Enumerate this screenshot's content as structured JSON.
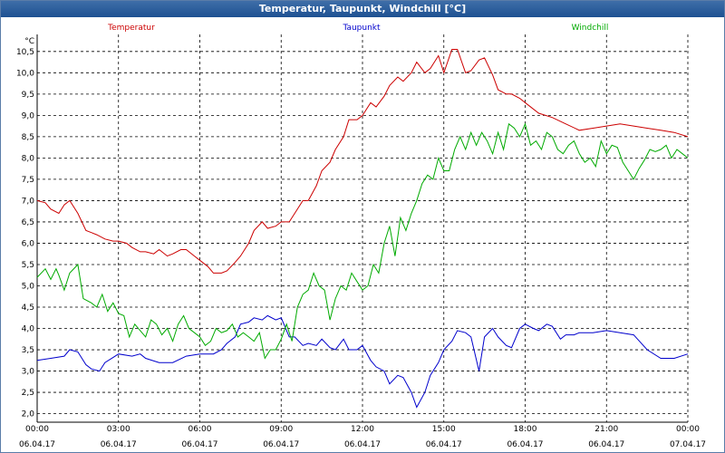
{
  "window": {
    "title": "Temperatur, Taupunkt, Windchill [°C]"
  },
  "chart_data": {
    "type": "line",
    "title": "Temperatur, Taupunkt, Windchill [°C]",
    "ylabel": "°C",
    "xlabel": "",
    "ylim": [
      1.8,
      10.9
    ],
    "xlim": [
      0,
      24
    ],
    "grid": true,
    "yticks": [
      "2,0",
      "2,5",
      "3,0",
      "3,5",
      "4,0",
      "4,5",
      "5,0",
      "5,5",
      "6,0",
      "6,5",
      "7,0",
      "7,5",
      "8,0",
      "8,5",
      "9,0",
      "9,5",
      "10,0",
      "10,5"
    ],
    "xticks": [
      {
        "time": "00:00",
        "date": "06.04.17"
      },
      {
        "time": "03:00",
        "date": "06.04.17"
      },
      {
        "time": "06:00",
        "date": "06.04.17"
      },
      {
        "time": "09:00",
        "date": "06.04.17"
      },
      {
        "time": "12:00",
        "date": "06.04.17"
      },
      {
        "time": "15:00",
        "date": "06.04.17"
      },
      {
        "time": "18:00",
        "date": "06.04.17"
      },
      {
        "time": "21:00",
        "date": "06.04.17"
      },
      {
        "time": "00:00",
        "date": "07.04.17"
      }
    ],
    "series": [
      {
        "name": "Temperatur",
        "color": "#cc0000",
        "x": [
          0,
          0.3,
          0.5,
          0.8,
          1.0,
          1.2,
          1.5,
          1.8,
          2.0,
          2.2,
          2.5,
          2.8,
          3.0,
          3.3,
          3.5,
          3.8,
          4.0,
          4.3,
          4.5,
          4.8,
          5.0,
          5.3,
          5.5,
          5.8,
          6.0,
          6.3,
          6.5,
          6.8,
          7.0,
          7.3,
          7.5,
          7.8,
          8.0,
          8.3,
          8.5,
          8.8,
          9.0,
          9.3,
          9.5,
          9.8,
          10.0,
          10.3,
          10.5,
          10.8,
          11.0,
          11.3,
          11.5,
          11.8,
          12.0,
          12.3,
          12.5,
          12.8,
          13.0,
          13.3,
          13.5,
          13.8,
          14.0,
          14.3,
          14.5,
          14.8,
          15.0,
          15.3,
          15.5,
          15.8,
          16.0,
          16.3,
          16.5,
          16.8,
          17.0,
          17.3,
          17.5,
          17.8,
          18.0,
          18.5,
          19.0,
          19.5,
          20.0,
          20.5,
          21.0,
          21.5,
          22.0,
          22.5,
          23.0,
          23.5,
          24.0
        ],
        "values": [
          7.0,
          6.95,
          6.8,
          6.7,
          6.9,
          7.0,
          6.7,
          6.3,
          6.25,
          6.2,
          6.1,
          6.05,
          6.05,
          6.0,
          5.9,
          5.8,
          5.8,
          5.75,
          5.85,
          5.7,
          5.75,
          5.85,
          5.85,
          5.7,
          5.6,
          5.45,
          5.3,
          5.3,
          5.35,
          5.55,
          5.7,
          6.0,
          6.3,
          6.5,
          6.35,
          6.4,
          6.5,
          6.5,
          6.7,
          7.0,
          7.0,
          7.35,
          7.7,
          7.9,
          8.2,
          8.5,
          8.9,
          8.9,
          9.0,
          9.3,
          9.2,
          9.45,
          9.7,
          9.9,
          9.8,
          10.0,
          10.25,
          10.0,
          10.1,
          10.4,
          10.0,
          10.55,
          10.55,
          10.0,
          10.05,
          10.3,
          10.35,
          9.95,
          9.6,
          9.5,
          9.5,
          9.4,
          9.3,
          9.05,
          8.95,
          8.8,
          8.65,
          8.7,
          8.75,
          8.8,
          8.75,
          8.7,
          8.65,
          8.6,
          8.5
        ]
      },
      {
        "name": "Taupunkt",
        "color": "#0000cc",
        "x": [
          0,
          0.5,
          1.0,
          1.2,
          1.5,
          1.8,
          2.0,
          2.3,
          2.5,
          3.0,
          3.5,
          3.8,
          4.0,
          4.5,
          5.0,
          5.5,
          6.0,
          6.5,
          6.8,
          7.0,
          7.3,
          7.5,
          7.8,
          8.0,
          8.3,
          8.5,
          8.8,
          9.0,
          9.3,
          9.5,
          9.8,
          10.0,
          10.3,
          10.5,
          10.8,
          11.0,
          11.3,
          11.5,
          11.8,
          12.0,
          12.3,
          12.5,
          12.8,
          13.0,
          13.3,
          13.5,
          13.8,
          14.0,
          14.3,
          14.5,
          14.8,
          15.0,
          15.3,
          15.5,
          15.8,
          16.0,
          16.3,
          16.5,
          16.8,
          17.0,
          17.3,
          17.5,
          17.8,
          18.0,
          18.3,
          18.5,
          18.8,
          19.0,
          19.3,
          19.5,
          19.8,
          20.0,
          20.5,
          21.0,
          21.5,
          22.0,
          22.5,
          23.0,
          23.5,
          24.0
        ],
        "values": [
          3.25,
          3.3,
          3.35,
          3.5,
          3.45,
          3.15,
          3.05,
          3.0,
          3.2,
          3.4,
          3.35,
          3.4,
          3.3,
          3.2,
          3.2,
          3.35,
          3.4,
          3.4,
          3.5,
          3.65,
          3.8,
          4.1,
          4.15,
          4.25,
          4.2,
          4.3,
          4.2,
          4.25,
          3.8,
          3.8,
          3.6,
          3.65,
          3.6,
          3.75,
          3.55,
          3.5,
          3.75,
          3.5,
          3.5,
          3.6,
          3.25,
          3.1,
          3.0,
          2.7,
          2.9,
          2.85,
          2.5,
          2.15,
          2.5,
          2.9,
          3.2,
          3.5,
          3.7,
          3.95,
          3.9,
          3.8,
          3.0,
          3.8,
          4.0,
          3.8,
          3.6,
          3.55,
          4.0,
          4.1,
          4.0,
          3.95,
          4.1,
          4.05,
          3.75,
          3.85,
          3.85,
          3.9,
          3.9,
          3.95,
          3.9,
          3.85,
          3.5,
          3.3,
          3.3,
          3.4
        ]
      },
      {
        "name": "Windchill",
        "color": "#00aa00",
        "x": [
          0,
          0.3,
          0.5,
          0.7,
          0.8,
          1.0,
          1.2,
          1.5,
          1.7,
          2.0,
          2.2,
          2.4,
          2.6,
          2.8,
          3.0,
          3.2,
          3.4,
          3.6,
          3.8,
          4.0,
          4.2,
          4.4,
          4.6,
          4.8,
          5.0,
          5.2,
          5.4,
          5.6,
          5.8,
          6.0,
          6.2,
          6.4,
          6.6,
          6.8,
          7.0,
          7.2,
          7.4,
          7.6,
          7.8,
          8.0,
          8.2,
          8.4,
          8.6,
          8.8,
          9.0,
          9.2,
          9.4,
          9.6,
          9.8,
          10.0,
          10.2,
          10.4,
          10.6,
          10.8,
          11.0,
          11.2,
          11.4,
          11.6,
          11.8,
          12.0,
          12.2,
          12.4,
          12.6,
          12.8,
          13.0,
          13.2,
          13.4,
          13.6,
          13.8,
          14.0,
          14.2,
          14.4,
          14.6,
          14.8,
          15.0,
          15.2,
          15.4,
          15.6,
          15.8,
          16.0,
          16.2,
          16.4,
          16.6,
          16.8,
          17.0,
          17.2,
          17.4,
          17.6,
          17.8,
          18.0,
          18.2,
          18.4,
          18.6,
          18.8,
          19.0,
          19.2,
          19.4,
          19.6,
          19.8,
          20.0,
          20.2,
          20.4,
          20.6,
          20.8,
          21.0,
          21.2,
          21.4,
          21.6,
          21.8,
          22.0,
          22.2,
          22.4,
          22.6,
          22.8,
          23.0,
          23.2,
          23.4,
          23.6,
          23.8,
          24.0
        ],
        "values": [
          5.2,
          5.4,
          5.15,
          5.4,
          5.25,
          4.9,
          5.3,
          5.5,
          4.7,
          4.6,
          4.5,
          4.8,
          4.4,
          4.6,
          4.35,
          4.3,
          3.8,
          4.1,
          3.95,
          3.8,
          4.2,
          4.1,
          3.85,
          4.0,
          3.7,
          4.1,
          4.3,
          4.0,
          3.9,
          3.8,
          3.6,
          3.7,
          4.0,
          3.9,
          3.95,
          4.1,
          3.8,
          3.9,
          3.8,
          3.7,
          3.9,
          3.3,
          3.5,
          3.5,
          3.75,
          4.1,
          3.7,
          4.5,
          4.8,
          4.9,
          5.3,
          5.0,
          4.9,
          4.2,
          4.7,
          5.0,
          4.9,
          5.3,
          5.1,
          4.9,
          5.0,
          5.5,
          5.3,
          6.0,
          6.4,
          5.7,
          6.6,
          6.3,
          6.7,
          7.0,
          7.4,
          7.6,
          7.5,
          8.0,
          7.7,
          7.7,
          8.2,
          8.5,
          8.2,
          8.6,
          8.3,
          8.6,
          8.4,
          8.1,
          8.6,
          8.2,
          8.8,
          8.7,
          8.5,
          8.8,
          8.3,
          8.4,
          8.2,
          8.6,
          8.5,
          8.2,
          8.1,
          8.3,
          8.4,
          8.1,
          7.9,
          8.0,
          7.8,
          8.4,
          8.1,
          8.3,
          8.25,
          7.9,
          7.7,
          7.5,
          7.75,
          7.95,
          8.2,
          8.15,
          8.2,
          8.3,
          8.0,
          8.2,
          8.1,
          8.0
        ]
      }
    ]
  }
}
